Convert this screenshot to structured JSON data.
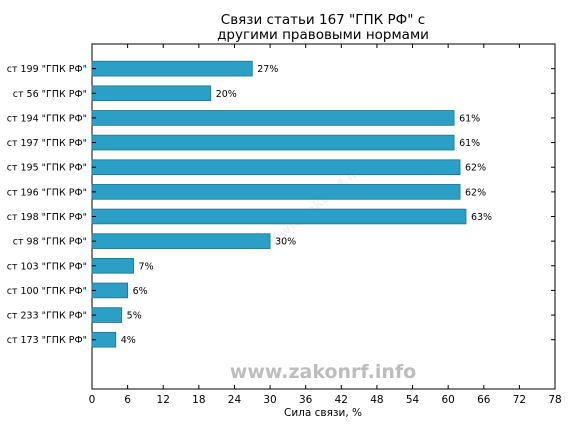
{
  "watermark": "www.zakonrf.info",
  "chart_data": {
    "type": "bar",
    "orientation": "horizontal",
    "title_lines": [
      "Связи статьи 167 \"ГПК РФ\" с",
      "другими правовыми нормами"
    ],
    "xlabel": "Сила связи, %",
    "ylabel": "",
    "xlim": [
      0,
      78
    ],
    "xticks": [
      0,
      6,
      12,
      18,
      24,
      30,
      36,
      42,
      48,
      54,
      60,
      66,
      72,
      78
    ],
    "grid": false,
    "bar_color": "#2b9fc6",
    "categories": [
      "ст 199 \"ГПК РФ\"",
      "ст 56 \"ГПК РФ\"",
      "ст 194 \"ГПК РФ\"",
      "ст 197 \"ГПК РФ\"",
      "ст 195 \"ГПК РФ\"",
      "ст 196 \"ГПК РФ\"",
      "ст 198 \"ГПК РФ\"",
      "ст 98 \"ГПК РФ\"",
      "ст 103 \"ГПК РФ\"",
      "ст 100 \"ГПК РФ\"",
      "ст 233 \"ГПК РФ\"",
      "ст 173 \"ГПК РФ\""
    ],
    "values": [
      27,
      20,
      61,
      61,
      62,
      62,
      63,
      30,
      7,
      6,
      5,
      4
    ],
    "value_labels": [
      "27%",
      "20%",
      "61%",
      "61%",
      "62%",
      "62%",
      "63%",
      "30%",
      "7%",
      "6%",
      "5%",
      "4%"
    ]
  }
}
